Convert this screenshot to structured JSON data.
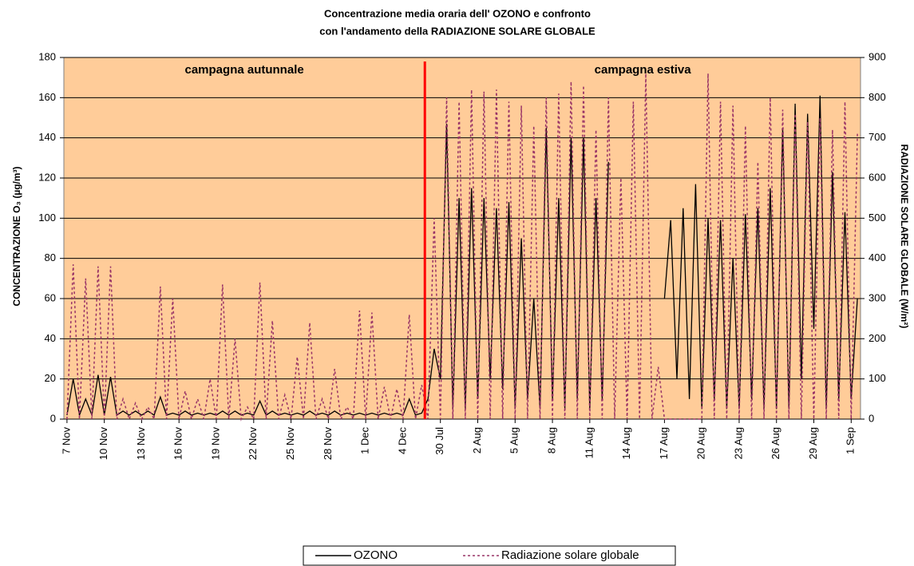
{
  "chart_data": {
    "type": "line",
    "title": "Concentrazione media oraria dell' OZONO e confronto",
    "subtitle": "con l'andamento della RADIAZIONE SOLARE GLOBALE",
    "ylabel": "CONCENTRAZIONE O₃ (µg/m³)",
    "y2label": "RADIAZIONE SOLARE GLOBALE (W/m²)",
    "annotations": [
      "campagna autunnale",
      "campagna estiva"
    ],
    "ylim": [
      0,
      180
    ],
    "yticks": [
      0,
      20,
      40,
      60,
      80,
      100,
      120,
      140,
      160,
      180
    ],
    "y2lim": [
      0,
      900
    ],
    "y2ticks": [
      0,
      100,
      200,
      300,
      400,
      500,
      600,
      700,
      800,
      900
    ],
    "grid": true,
    "legend": "bottom",
    "background": "#ffcc99",
    "categories": [
      "7 Nov",
      null,
      null,
      null,
      null,
      null,
      "10 Nov",
      null,
      null,
      null,
      null,
      null,
      "13 Nov",
      null,
      null,
      null,
      null,
      null,
      "16 Nov",
      null,
      null,
      null,
      null,
      null,
      "19 Nov",
      null,
      null,
      null,
      null,
      null,
      "22 Nov",
      null,
      null,
      null,
      null,
      null,
      "25 Nov",
      null,
      null,
      null,
      null,
      null,
      "28 Nov",
      null,
      null,
      null,
      null,
      null,
      "1 Dec",
      null,
      null,
      null,
      null,
      null,
      "4 Dec",
      null,
      null,
      null,
      null,
      null,
      "30 Jul",
      null,
      null,
      null,
      null,
      null,
      "2 Aug",
      null,
      null,
      null,
      null,
      null,
      "5 Aug",
      null,
      null,
      null,
      null,
      null,
      "8 Aug",
      null,
      null,
      null,
      null,
      null,
      "11 Aug",
      null,
      null,
      null,
      null,
      null,
      "14 Aug",
      null,
      null,
      null,
      null,
      null,
      "17 Aug",
      null,
      null,
      null,
      null,
      null,
      "20 Aug",
      null,
      null,
      null,
      null,
      null,
      "23 Aug",
      null,
      null,
      null,
      null,
      null,
      "26 Aug",
      null,
      null,
      null,
      null,
      null,
      "29 Aug",
      null,
      null,
      null,
      null,
      null,
      "1 Sep",
      null
    ],
    "series": [
      {
        "name": "OZONO",
        "color": "#000000",
        "dash": "none",
        "values": [
          2,
          20,
          2,
          10,
          2,
          22,
          2,
          21,
          2,
          4,
          2,
          4,
          2,
          4,
          2,
          11,
          2,
          3,
          2,
          4,
          2,
          3,
          2,
          3,
          2,
          4,
          2,
          4,
          2,
          3,
          2,
          9,
          2,
          4,
          2,
          3,
          2,
          3,
          2,
          4,
          2,
          3,
          2,
          4,
          2,
          3,
          2,
          3,
          2,
          3,
          2,
          3,
          2,
          3,
          2,
          10,
          2,
          3,
          10,
          35,
          20,
          147,
          5,
          110,
          5,
          115,
          10,
          110,
          20,
          105,
          15,
          108,
          5,
          90,
          10,
          60,
          5,
          145,
          10,
          110,
          5,
          140,
          10,
          140,
          5,
          110,
          10,
          128,
          null,
          null,
          null,
          null,
          null,
          null,
          null,
          null,
          60,
          99,
          20,
          105,
          10,
          117,
          5,
          100,
          10,
          99,
          5,
          80,
          5,
          102,
          10,
          105,
          5,
          115,
          5,
          145,
          5,
          157,
          20,
          152,
          45,
          161,
          5,
          123,
          10,
          103,
          10,
          60
        ]
      },
      {
        "name": "Radiazione solare globale",
        "color": "#993366",
        "dash": "3 3",
        "axis": "y2",
        "values": [
          0,
          385,
          0,
          350,
          0,
          380,
          0,
          380,
          0,
          50,
          0,
          40,
          0,
          30,
          0,
          330,
          0,
          300,
          0,
          70,
          0,
          50,
          0,
          100,
          0,
          335,
          0,
          200,
          0,
          30,
          0,
          340,
          0,
          245,
          0,
          60,
          0,
          155,
          0,
          240,
          0,
          50,
          0,
          125,
          0,
          30,
          0,
          270,
          0,
          265,
          0,
          80,
          0,
          75,
          0,
          260,
          0,
          85,
          0,
          500,
          0,
          800,
          0,
          790,
          0,
          820,
          0,
          815,
          0,
          820,
          0,
          790,
          0,
          780,
          0,
          730,
          0,
          800,
          0,
          810,
          0,
          840,
          0,
          830,
          0,
          720,
          0,
          800,
          0,
          600,
          0,
          790,
          0,
          860,
          0,
          130,
          0,
          0,
          0,
          0,
          0,
          0,
          0,
          860,
          0,
          790,
          0,
          780,
          0,
          730,
          0,
          640,
          0,
          800,
          0,
          770,
          0,
          760,
          0,
          740,
          0,
          750,
          0,
          720,
          0,
          790,
          0,
          710
        ]
      }
    ]
  }
}
